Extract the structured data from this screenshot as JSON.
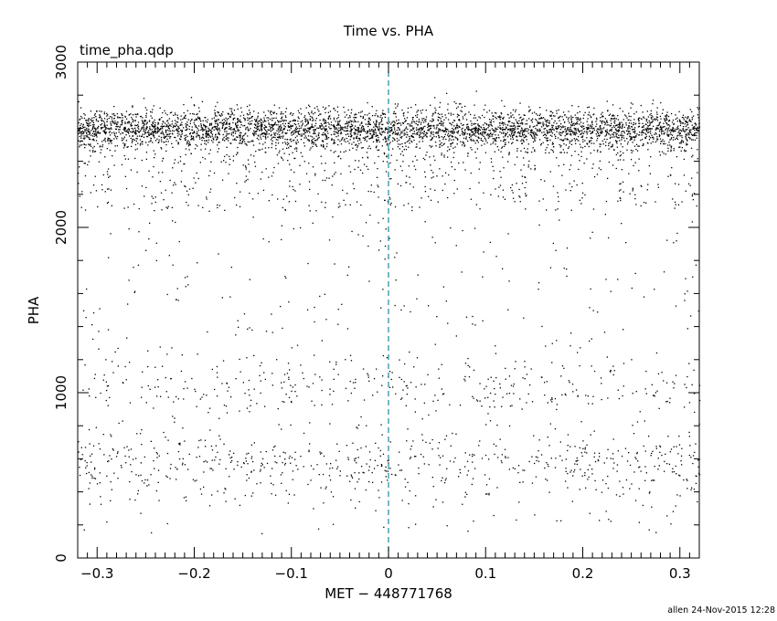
{
  "chart_data": {
    "type": "scatter",
    "title": "Time vs. PHA",
    "subtitle": "time_pha.qdp",
    "xlabel": "MET − 448771768",
    "ylabel": "PHA",
    "xlim": [
      -0.32,
      0.32
    ],
    "ylim": [
      0,
      3000
    ],
    "x_ticks": [
      -0.3,
      -0.2,
      -0.1,
      0,
      0.1,
      0.2,
      0.3
    ],
    "x_tick_labels": [
      "−0.3",
      "−0.2",
      "−0.1",
      "0",
      "0.1",
      "0.2",
      "0.3"
    ],
    "y_ticks": [
      0,
      1000,
      2000,
      3000
    ],
    "y_tick_labels": [
      "0",
      "1000",
      "2000",
      "3000"
    ],
    "grid": false,
    "marker_color": "#000000",
    "reference_line": {
      "x": 0,
      "style": "dashed",
      "color": "#1a8a99"
    },
    "series": [
      {
        "point_count": 6000,
        "components": [
          {
            "kind": "dense_band",
            "y_center": 2600,
            "y_spread": 60,
            "fraction": 0.6
          },
          {
            "kind": "band_tail",
            "y_from": 2100,
            "y_to": 2600,
            "fraction": 0.18
          },
          {
            "kind": "sparse_band",
            "y_center": 580,
            "y_spread": 90,
            "fraction": 0.09
          },
          {
            "kind": "sparse_band",
            "y_center": 1050,
            "y_spread": 80,
            "fraction": 0.05
          },
          {
            "kind": "scattered",
            "y_from": 150,
            "y_to": 2100,
            "fraction": 0.08
          }
        ]
      }
    ]
  },
  "footer": {
    "stamp": "allen 24-Nov-2015 12:28"
  }
}
